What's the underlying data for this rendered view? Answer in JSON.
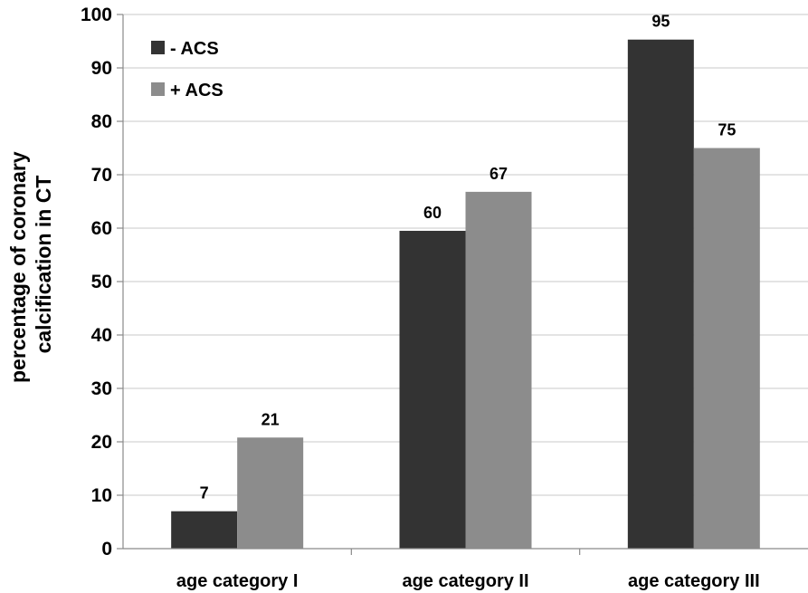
{
  "chart_data": {
    "type": "bar",
    "title": "",
    "xlabel": "",
    "ylabel_lines": [
      "percentage of coronary",
      "calcification in CT"
    ],
    "ylim": [
      0,
      100
    ],
    "yticks": [
      0,
      10,
      20,
      30,
      40,
      50,
      60,
      70,
      80,
      90,
      100
    ],
    "grid": true,
    "legend_position": "top-left",
    "categories": [
      "age category I",
      "age category II",
      "age category III"
    ],
    "series": [
      {
        "name": "- ACS",
        "color": "#333333",
        "values": [
          7,
          59.5,
          95.3
        ],
        "labels": [
          "7",
          "60",
          "95"
        ]
      },
      {
        "name": "+ ACS",
        "color": "#8c8c8c",
        "values": [
          20.8,
          66.8,
          75
        ],
        "labels": [
          "21",
          "67",
          "75"
        ]
      }
    ]
  }
}
